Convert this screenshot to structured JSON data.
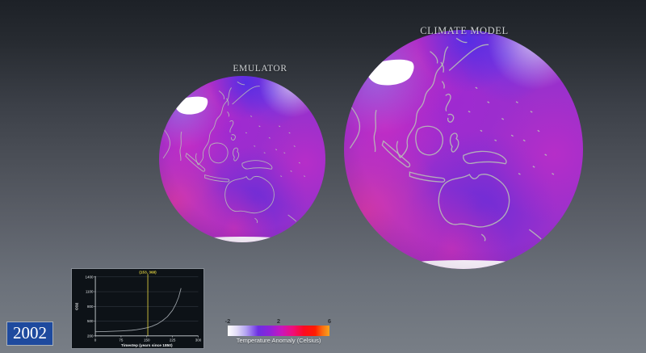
{
  "viewport": {
    "emulator_label": "EMULATOR",
    "climate_label": "CLIMATE MODEL"
  },
  "year_badge": {
    "year": "2002"
  },
  "colorbar": {
    "title": "Temperature Anomaly (Celsius)",
    "tick_labels": [
      "-2",
      "2",
      "6"
    ],
    "range": [
      -2,
      6
    ],
    "stops": [
      [
        0,
        "#ffffff"
      ],
      [
        0.09,
        "#e2dcf7"
      ],
      [
        0.18,
        "#b3a3f2"
      ],
      [
        0.3,
        "#6c2fe2"
      ],
      [
        0.42,
        "#9122d8"
      ],
      [
        0.53,
        "#c916bc"
      ],
      [
        0.64,
        "#ef0e7a"
      ],
      [
        0.75,
        "#fd0a20"
      ],
      [
        0.86,
        "#ff1c00"
      ],
      [
        0.93,
        "#fb6c10"
      ],
      [
        1,
        "#f6a41e"
      ]
    ]
  },
  "chart_data": {
    "type": "line",
    "title": "",
    "xlabel": "Timestep (years since 1850)",
    "ylabel": "CO2",
    "xlim": [
      0,
      300
    ],
    "ylim": [
      200,
      1400
    ],
    "x_ticks": [
      0,
      75,
      150,
      225,
      300
    ],
    "y_ticks": [
      200,
      500,
      800,
      1100,
      1400
    ],
    "grid": true,
    "legend": "none",
    "annotation": "(153, 368)",
    "cursor_x": 153,
    "cursor_color": "#d9cb3f",
    "line_color": "#9aa0a6",
    "series": [
      {
        "name": "CO2",
        "x": [
          0,
          15,
          30,
          45,
          60,
          75,
          90,
          105,
          120,
          135,
          150,
          153,
          165,
          180,
          195,
          210,
          225,
          235,
          243,
          250
        ],
        "y": [
          285,
          287,
          289,
          292,
          296,
          300,
          306,
          314,
          325,
          343,
          365,
          368,
          395,
          440,
          505,
          590,
          720,
          850,
          990,
          1170
        ]
      }
    ]
  }
}
